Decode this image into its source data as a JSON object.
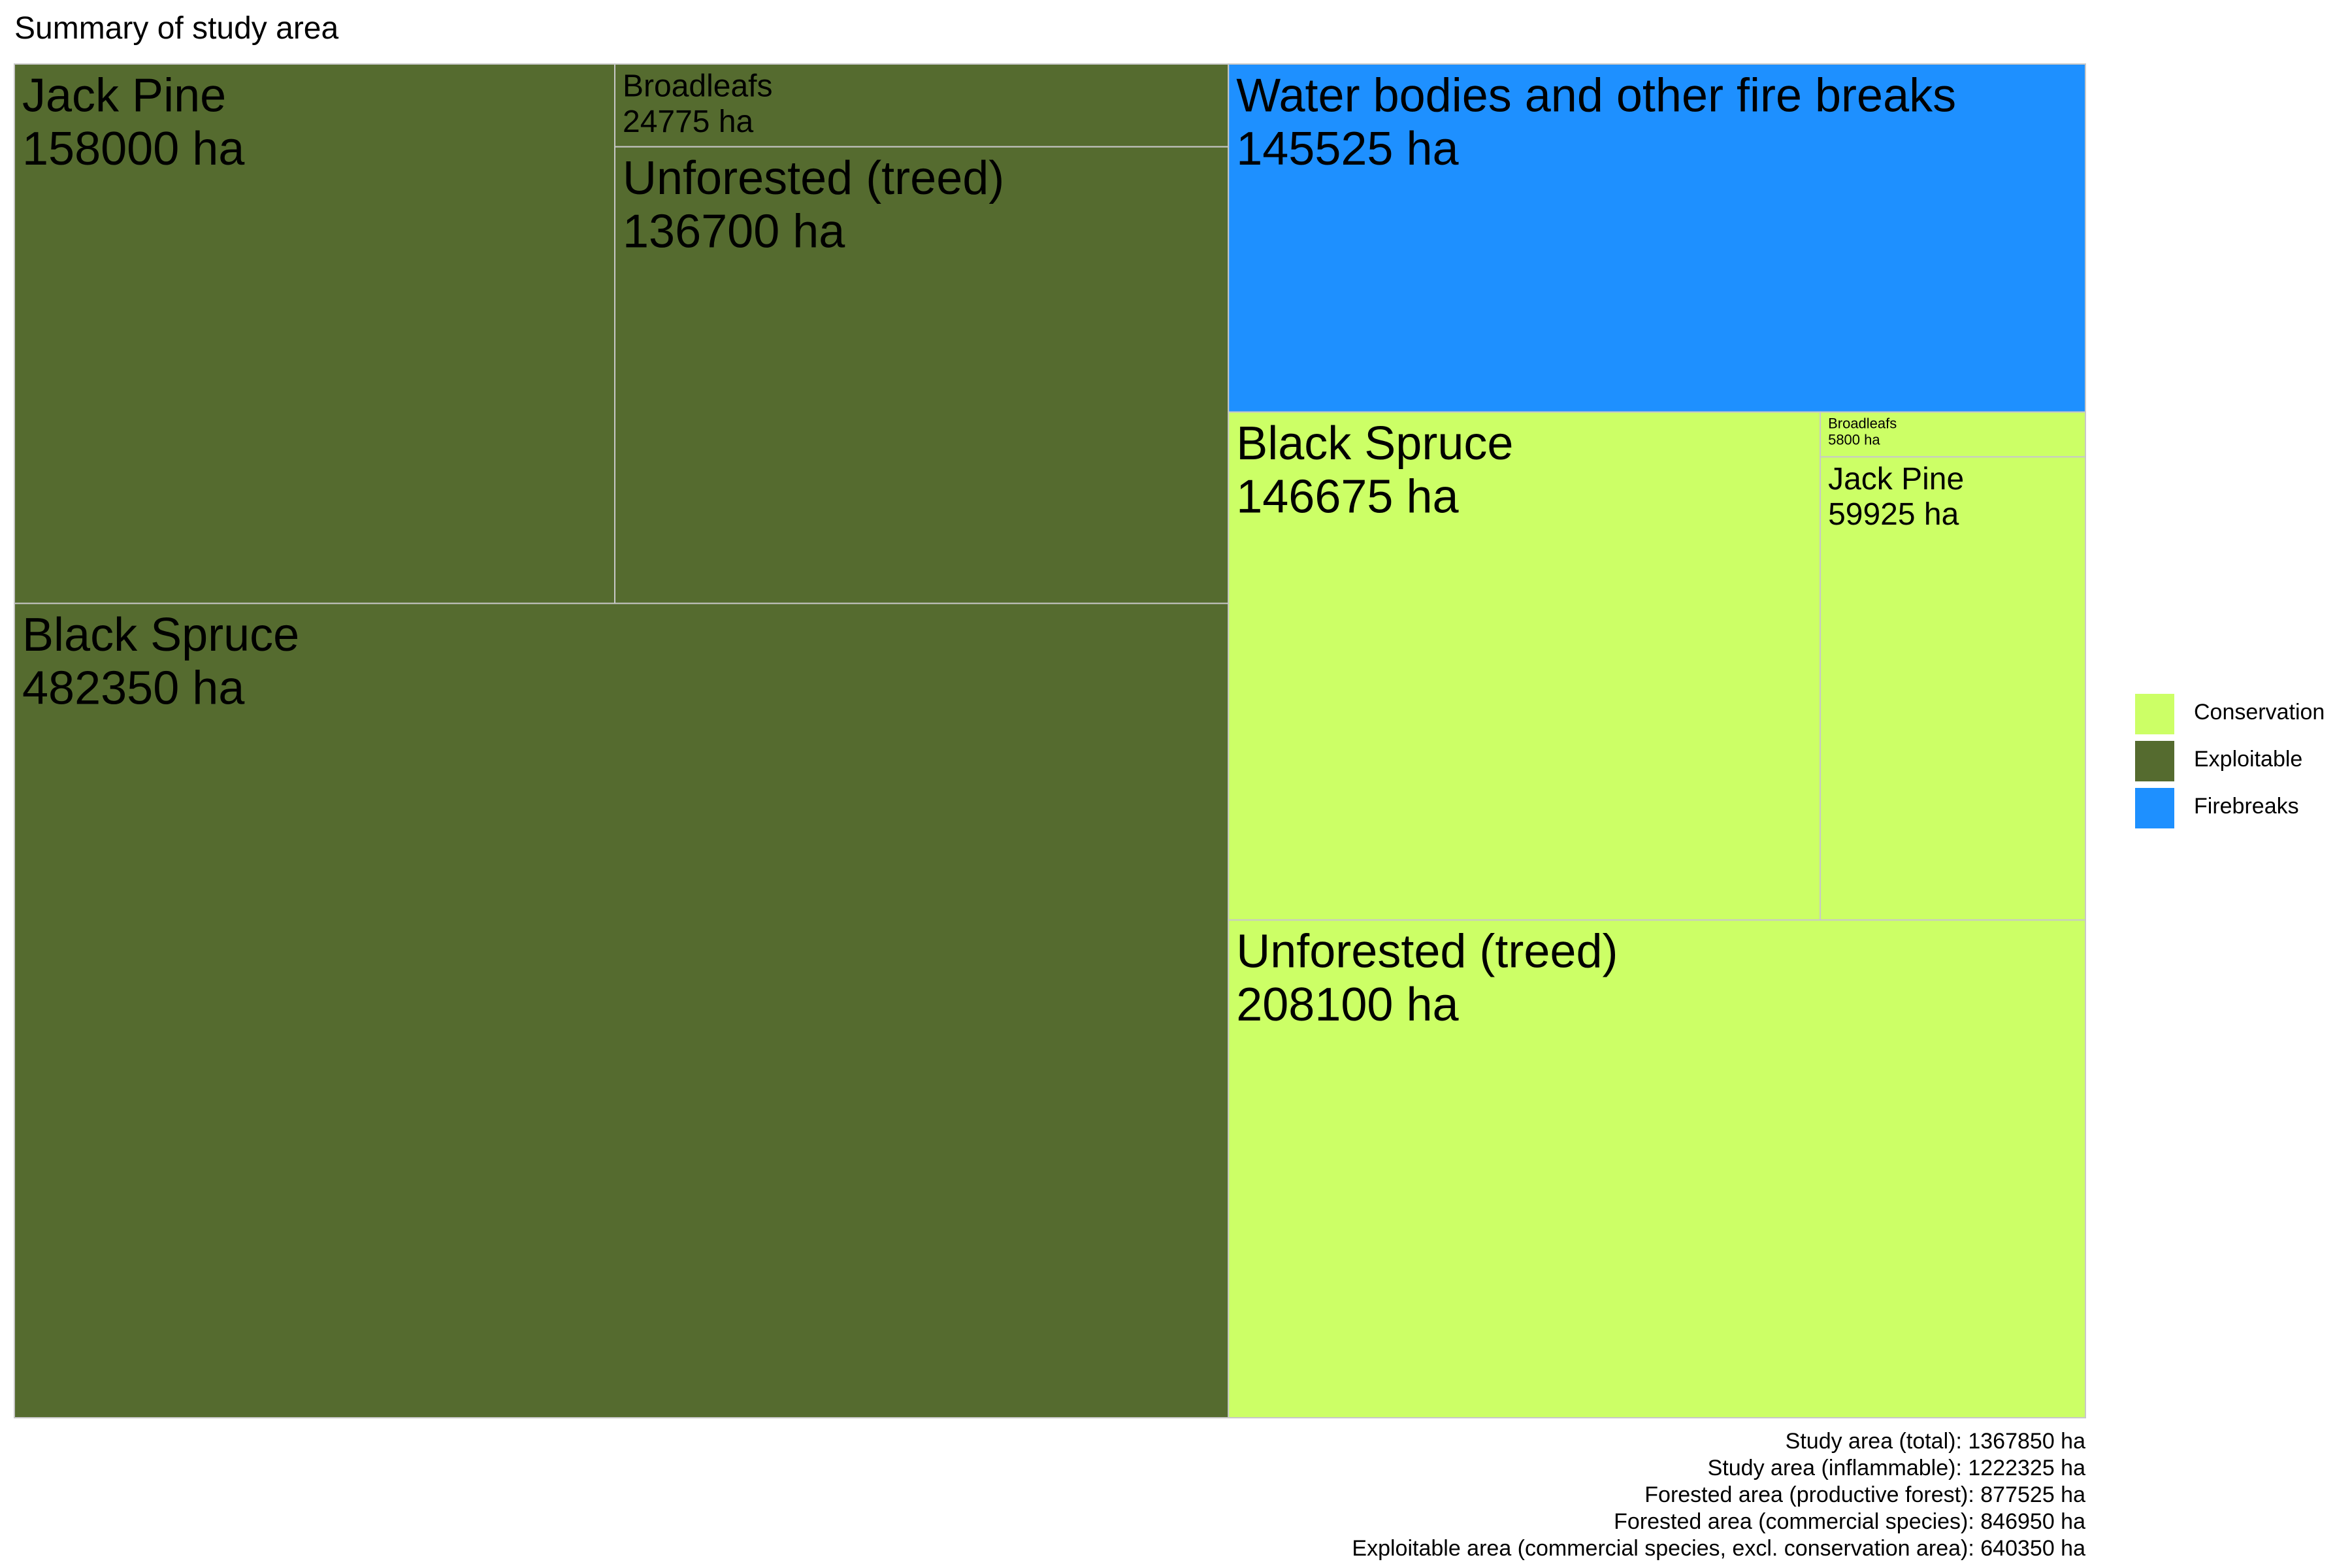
{
  "chart_data": {
    "type": "treemap",
    "title": "Summary of study area",
    "unit": "ha",
    "groups": [
      {
        "name": "Exploitable",
        "color": "#556b2f",
        "tiles": [
          {
            "label": "Black Spruce",
            "value": 482350,
            "value_text": "482350 ha"
          },
          {
            "label": "Jack Pine",
            "value": 158000,
            "value_text": "158000 ha"
          },
          {
            "label": "Unforested (treed)",
            "value": 136700,
            "value_text": "136700 ha"
          },
          {
            "label": "Broadleafs",
            "value": 24775,
            "value_text": "24775 ha"
          }
        ]
      },
      {
        "name": "Conservation",
        "color": "#ccff66",
        "tiles": [
          {
            "label": "Unforested (treed)",
            "value": 208100,
            "value_text": "208100 ha"
          },
          {
            "label": "Black Spruce",
            "value": 146675,
            "value_text": "146675 ha"
          },
          {
            "label": "Jack Pine",
            "value": 59925,
            "value_text": "59925 ha"
          },
          {
            "label": "Broadleafs",
            "value": 5800,
            "value_text": "5800 ha"
          }
        ]
      },
      {
        "name": "Firebreaks",
        "color": "#1e90ff",
        "tiles": [
          {
            "label": "Water bodies and other fire breaks",
            "value": 145525,
            "value_text": "145525 ha"
          }
        ]
      }
    ],
    "legend": {
      "placement": "right",
      "entries": [
        {
          "name": "Conservation",
          "color": "#ccff66"
        },
        {
          "name": "Exploitable",
          "color": "#556b2f"
        },
        {
          "name": "Firebreaks",
          "color": "#1e90ff"
        }
      ]
    },
    "caption": [
      "Study area (total): 1367850 ha",
      "Study area (inflammable): 1222325 ha",
      "Forested area (productive forest): 877525 ha",
      "Forested area (commercial species): 846950 ha",
      "Exploitable area (commercial species, excl. conservation area): 640350 ha"
    ]
  }
}
